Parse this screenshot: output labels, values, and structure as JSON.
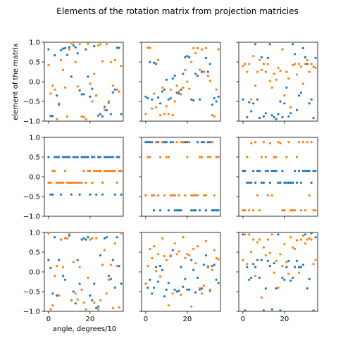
{
  "chart_data": {
    "type": "scatter",
    "title": "Elements of the rotation matrix from projection matricies",
    "xlabel": "angle, degrees/10",
    "ylabel": "element of the matrix",
    "xlim": [
      -2,
      36
    ],
    "ylim": [
      -1.0,
      1.0
    ],
    "yticks": [
      "1.0",
      "0.5",
      "0.0",
      "−0.5",
      "−1.0"
    ],
    "xticks": [
      "0",
      "20"
    ],
    "grid": false,
    "colors": {
      "series_a": "#1f77b4",
      "series_b": "#ff7f0e"
    },
    "panels": [
      {
        "row": 0,
        "col": 0,
        "series": [
          {
            "values": [
              0.82,
              -0.87,
              -0.87,
              0.67,
              -0.35,
              -0.58,
              0.8,
              0.84,
              0.85,
              0.68,
              0.87,
              0.13,
              0.92,
              0.87,
              0.72,
              -0.22,
              -0.32,
              -0.32,
              0.82,
              0.13,
              -0.38,
              -0.18,
              0.9,
              -0.35,
              -0.86,
              -0.82,
              -0.88,
              -0.64,
              -0.72,
              -0.53,
              -0.82,
              -0.27,
              -0.2,
              0.86,
              0.86,
              -0.82
            ]
          },
          {
            "values": [
              0.42,
              -0.3,
              -0.1,
              -0.2,
              -0.95,
              -0.55,
              0.55,
              0.3,
              -0.15,
              -0.88,
              0.82,
              0.98,
              1.0,
              0.5,
              -0.12,
              0.95,
              -0.88,
              -0.9,
              -0.95,
              0.96,
              -0.05,
              -0.5,
              0.2,
              -0.35,
              0.92,
              0.95,
              0.52,
              -0.72,
              0.95,
              -0.5,
              0.5,
              -0.1,
              0.55,
              -0.2,
              -0.25,
              0.4
            ]
          }
        ]
      },
      {
        "row": 0,
        "col": 1,
        "series": [
          {
            "values": [
              -0.38,
              -0.42,
              0.5,
              -0.45,
              0.48,
              0.45,
              -0.4,
              -0.55,
              -0.25,
              -0.2,
              0.05,
              -0.45,
              -0.42,
              0.08,
              0.15,
              -0.28,
              -0.3,
              -0.2,
              0.2,
              0.62,
              0.65,
              0.62,
              -0.45,
              -0.47,
              0.2,
              0.15,
              -0.45,
              0.25,
              0.25,
              0.6,
              0.25,
              0.45,
              -0.58,
              -0.42,
              -0.5,
              -0.38
            ]
          },
          {
            "values": [
              -0.82,
              0.86,
              0.86,
              -0.68,
              -0.3,
              -0.65,
              0.55,
              -0.85,
              -0.15,
              -0.82,
              -0.62,
              -0.82,
              -0.2,
              -0.85,
              -0.5,
              -0.1,
              -0.25,
              -0.32,
              -0.15,
              0.3,
              0.0,
              -0.18,
              0.5,
              0.85,
              0.72,
              0.85,
              0.3,
              0.82,
              0.25,
              0.85,
              0.15,
              0.02,
              -0.85,
              -0.88,
              -0.2,
              0.82
            ]
          }
        ]
      },
      {
        "row": 0,
        "col": 2,
        "series": [
          {
            "values": [
              -0.45,
              0.45,
              -0.9,
              -0.52,
              -0.75,
              -0.55,
              0.95,
              -0.45,
              -0.92,
              0.62,
              -0.88,
              -0.8,
              0.6,
              0.95,
              -0.85,
              -0.9,
              -0.95,
              -0.82,
              -0.5,
              -0.9,
              -0.55,
              -0.15,
              -0.88,
              -0.8,
              0.95,
              0.7,
              -0.72,
              -0.35,
              -0.28,
              0.85,
              0.62,
              0.45,
              -0.55,
              -0.45,
              -0.92,
              0.6
            ]
          },
          {
            "values": [
              0.4,
              0.45,
              0.25,
              0.45,
              -0.45,
              0.65,
              -0.1,
              0.25,
              0.55,
              0.3,
              0.45,
              0.25,
              0.45,
              0.02,
              -0.15,
              0.2,
              0.05,
              0.35,
              0.28,
              0.82,
              -0.35,
              0.25,
              0.08,
              -0.65,
              0.42,
              0.45,
              0.18,
              0.45,
              0.38,
              -0.05,
              0.45,
              0.55,
              0.25,
              0.45,
              0.38,
              0.35
            ]
          }
        ]
      },
      {
        "row": 1,
        "col": 0,
        "series": [
          {
            "values": [
              0.5,
              -0.45,
              -0.45,
              0.5,
              0.5,
              0.5,
              -0.45,
              0.5,
              0.5,
              0.5,
              0.5,
              -0.45,
              0.5,
              0.5,
              0.5,
              -0.45,
              0.5,
              0.5,
              0.5,
              0.5,
              -0.45,
              0.5,
              0.5,
              -0.45,
              0.5,
              0.5,
              -0.45,
              0.5,
              0.5,
              0.5,
              0.5,
              0.5,
              -0.45,
              0.5,
              0.5,
              -0.45
            ]
          },
          {
            "values": [
              -0.15,
              -0.15,
              0.15,
              0.15,
              -0.15,
              -0.15,
              -0.15,
              -0.15,
              0.15,
              -0.15,
              -0.15,
              -0.15,
              -0.15,
              -0.15,
              -0.15,
              -0.15,
              -0.15,
              0.15,
              -0.15,
              0.15,
              0.15,
              -0.15,
              0.15,
              0.15,
              0.15,
              0.15,
              -0.15,
              0.15,
              0.15,
              0.15,
              0.15,
              0.15,
              0.15,
              -0.15,
              0.15,
              0.15
            ]
          }
        ]
      },
      {
        "row": 1,
        "col": 1,
        "series": [
          {
            "values": [
              0.88,
              0.88,
              0.88,
              0.88,
              -0.85,
              0.88,
              0.88,
              -0.85,
              0.88,
              0.88,
              0.88,
              -0.85,
              0.88,
              0.88,
              -0.85,
              -0.85,
              -0.85,
              -0.85,
              0.88,
              0.88,
              0.88,
              0.88,
              -0.85,
              -0.85,
              -0.85,
              0.88,
              -0.85,
              0.88,
              0.88,
              -0.85,
              0.88,
              0.88,
              -0.85,
              -0.85,
              -0.85,
              -0.85
            ]
          },
          {
            "values": [
              -0.47,
              0.5,
              0.5,
              -0.47,
              -0.47,
              0.88,
              -0.47,
              0.5,
              0.88,
              -0.47,
              0.5,
              0.5,
              -0.47,
              -0.47,
              -0.47,
              0.88,
              -0.47,
              0.88,
              0.88,
              -0.47,
              0.5,
              0.88,
              -0.47,
              -0.47,
              -0.47,
              -0.47,
              0.5,
              0.5,
              -0.47,
              -0.47,
              0.5,
              0.5,
              0.88,
              -0.47,
              0.5,
              0.5
            ]
          }
        ]
      },
      {
        "row": 1,
        "col": 2,
        "series": [
          {
            "values": [
              0.15,
              0.15,
              -0.15,
              -0.15,
              -0.15,
              0.15,
              -0.15,
              0.15,
              0.15,
              -0.15,
              -0.15,
              0.15,
              0.15,
              -0.15,
              0.15,
              0.15,
              0.15,
              -0.15,
              -0.15,
              0.15,
              -0.15,
              -0.15,
              -0.15,
              -0.15,
              -0.15,
              0.15,
              -0.15,
              0.15,
              -0.15,
              0.15,
              0.15,
              0.15,
              0.15,
              -0.15,
              0.15,
              0.15
            ]
          },
          {
            "values": [
              -0.85,
              -0.85,
              0.5,
              -0.85,
              0.85,
              -0.85,
              0.88,
              -0.47,
              -0.85,
              0.5,
              0.88,
              0.5,
              -0.47,
              0.85,
              -0.47,
              0.5,
              0.5,
              0.88,
              0.85,
              -0.85,
              -0.85,
              0.5,
              0.88,
              -0.85,
              -0.85,
              -0.85,
              0.5,
              0.88,
              -0.85,
              0.88,
              -0.85,
              0.88,
              -0.47,
              0.88,
              -0.85,
              -0.85
            ]
          }
        ]
      },
      {
        "row": 2,
        "col": 0,
        "series": [
          {
            "values": [
              0.3,
              0.1,
              -0.55,
              0.88,
              -0.6,
              0.3,
              0.82,
              -0.1,
              -0.2,
              0.85,
              0.92,
              -0.72,
              -0.5,
              -0.8,
              0.3,
              -0.3,
              0.82,
              0.85,
              0.82,
              0.88,
              -0.6,
              -0.72,
              -0.3,
              -0.92,
              -0.88,
              0.42,
              0.18,
              0.85,
              0.88,
              -0.1,
              -0.18,
              0.3,
              -0.4,
              0.88,
              0.15,
              -0.3
            ]
          },
          {
            "values": [
              0.98,
              -0.95,
              -0.85,
              -0.1,
              0.15,
              -0.6,
              0.82,
              0.12,
              0.85,
              0.85,
              0.98,
              -0.72,
              0.25,
              -0.55,
              -0.7,
              0.12,
              -0.45,
              -0.78,
              -0.95,
              -0.15,
              0.82,
              0.85,
              -0.78,
              0.85,
              -0.95,
              -0.72,
              0.18,
              0.55,
              -0.55,
              -0.2,
              0.18,
              -0.92,
              0.72,
              0.15,
              -0.9,
              0.98
            ]
          }
        ]
      },
      {
        "row": 2,
        "col": 1,
        "series": [
          {
            "values": [
              -0.3,
              -0.4,
              -0.2,
              -0.55,
              -0.4,
              0.12,
              -0.25,
              0.15,
              0.05,
              -0.62,
              -0.45,
              -0.28,
              0.4,
              0.55,
              -0.45,
              -0.5,
              -0.48,
              0.12,
              -0.38,
              -0.18,
              -0.45,
              -0.45,
              0.3,
              0.05,
              -0.52,
              -0.15,
              -0.45,
              -0.42,
              0.18,
              0.42,
              0.12,
              -0.48,
              0.15,
              0.18,
              -0.2,
              -0.28
            ]
          },
          {
            "values": [
              -0.3,
              0.15,
              0.58,
              0.35,
              0.65,
              0.02,
              0.45,
              -0.12,
              0.85,
              0.4,
              0.3,
              -0.85,
              0.42,
              -0.55,
              0.72,
              0.45,
              0.52,
              -0.58,
              0.88,
              0.35,
              0.45,
              0.42,
              -0.88,
              0.58,
              0.22,
              0.65,
              -0.42,
              -0.55,
              -0.35,
              0.78,
              0.15,
              -0.45,
              0.05,
              0.55,
              0.35,
              0.32
            ]
          }
        ]
      },
      {
        "row": 2,
        "col": 2,
        "series": [
          {
            "values": [
              0.95,
              -0.98,
              0.12,
              -0.2,
              -0.15,
              0.2,
              0.12,
              0.3,
              -0.15,
              0.3,
              -0.98,
              -0.42,
              0.28,
              0.15,
              -0.95,
              0.22,
              -0.42,
              0.95,
              -0.98,
              -0.15,
              -0.2,
              0.12,
              0.28,
              -0.22,
              -0.15,
              0.12,
              0.28,
              0.12,
              0.12,
              0.18,
              0.95,
              -0.42,
              -0.18,
              0.98,
              -0.98,
              0.88
            ]
          },
          {
            "values": [
              0.3,
              0.95,
              0.2,
              0.95,
              0.5,
              0.82,
              -0.1,
              0.75,
              0.82,
              -0.65,
              0.62,
              0.42,
              0.82,
              0.48,
              0.95,
              -0.02,
              0.28,
              -0.4,
              0.45,
              0.15,
              0.7,
              0.25,
              -0.05,
              0.88,
              0.62,
              0.58,
              0.8,
              -0.02,
              0.82,
              0.92,
              0.72,
              0.82,
              0.85,
              0.82,
              0.2,
              0.3
            ]
          }
        ]
      }
    ]
  }
}
